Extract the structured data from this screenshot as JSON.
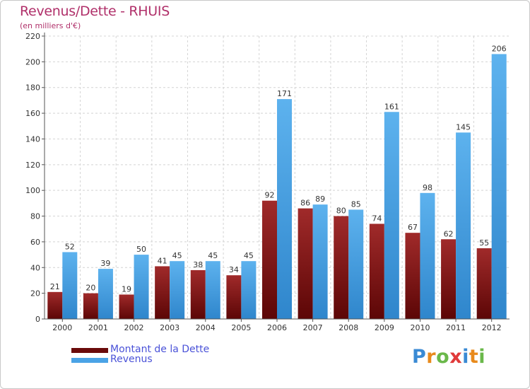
{
  "title": "Revenus/Dette - RHUIS",
  "subtitle": "(en milliers d'€)",
  "legend": {
    "debt_label": "Montant de la Dette",
    "revenue_label": "Revenus"
  },
  "logo": {
    "letters": [
      "P",
      "r",
      "o",
      "x",
      "i",
      "t",
      "i"
    ],
    "colors": [
      "#3a8ad4",
      "#e88a1c",
      "#6ab84a",
      "#e03a3a",
      "#3a8ad4",
      "#e88a1c",
      "#6ab84a"
    ]
  },
  "colors": {
    "debt": "#8b1c1c",
    "revenue": "#4aa3e6",
    "title": "#b0306a",
    "legend_text": "#4a52d8"
  },
  "chart_data": {
    "type": "bar",
    "title": "Revenus/Dette - RHUIS",
    "ylabel": "(en milliers d'€)",
    "ylim": [
      0,
      220
    ],
    "yticks": [
      0,
      20,
      40,
      60,
      80,
      100,
      120,
      140,
      160,
      180,
      200,
      220
    ],
    "categories": [
      "2000",
      "2001",
      "2002",
      "2003",
      "2004",
      "2005",
      "2006",
      "2007",
      "2008",
      "2009",
      "2010",
      "2011",
      "2012"
    ],
    "series": [
      {
        "name": "Montant de la Dette",
        "values": [
          21,
          20,
          19,
          41,
          38,
          34,
          92,
          86,
          80,
          74,
          67,
          62,
          55
        ]
      },
      {
        "name": "Revenus",
        "values": [
          52,
          39,
          50,
          45,
          45,
          45,
          171,
          89,
          85,
          161,
          98,
          145,
          206
        ]
      }
    ],
    "legend_position": "bottom-left",
    "grid": true
  }
}
